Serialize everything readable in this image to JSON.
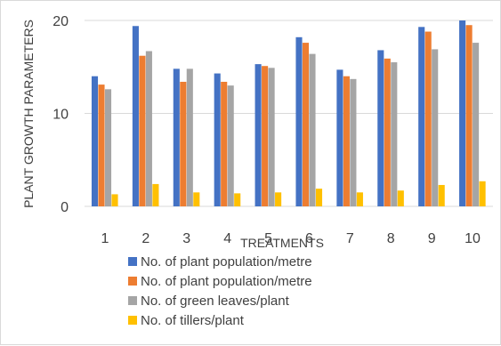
{
  "chart_data": {
    "type": "bar",
    "title": "",
    "xlabel": "TREATMENTS",
    "ylabel": "PLANT GROWTH PARAMETERS",
    "categories": [
      "1",
      "2",
      "3",
      "4",
      "5",
      "6",
      "7",
      "8",
      "9",
      "10"
    ],
    "ylim": [
      0,
      20
    ],
    "yticks": [
      0,
      10,
      20
    ],
    "grid": true,
    "legend_position": "bottom",
    "series": [
      {
        "name": "No. of plant population/metre",
        "color": "#4472c4",
        "values": [
          14.0,
          19.4,
          14.8,
          14.3,
          15.3,
          18.2,
          14.7,
          16.8,
          19.3,
          20.0
        ]
      },
      {
        "name": "No. of plant population/metre",
        "color": "#ed7d31",
        "values": [
          13.1,
          16.2,
          13.4,
          13.4,
          15.1,
          17.6,
          14.0,
          15.9,
          18.8,
          19.5
        ]
      },
      {
        "name": "No. of green leaves/plant",
        "color": "#a5a5a5",
        "values": [
          12.6,
          16.7,
          14.8,
          13.0,
          14.9,
          16.4,
          13.7,
          15.5,
          16.9,
          17.6
        ]
      },
      {
        "name": "No. of tillers/plant",
        "color": "#ffc000",
        "values": [
          1.3,
          2.4,
          1.5,
          1.4,
          1.5,
          1.9,
          1.5,
          1.7,
          2.3,
          2.7
        ]
      }
    ]
  }
}
